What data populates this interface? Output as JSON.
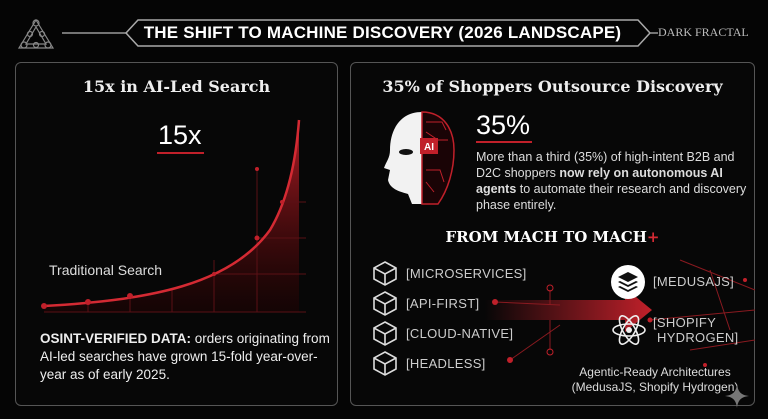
{
  "header": {
    "title": "THE SHIFT TO MACHINE DISCOVERY (2026 LANDSCAPE)",
    "brand": "DARK FRACTAL",
    "logo_icon": "fractal-triangle-icon"
  },
  "left_panel": {
    "title": "15x in AI-Led Search",
    "stat": "15x",
    "curve_label": "Traditional Search",
    "footnote_bold": "OSINT-VERIFIED DATA:",
    "footnote": " orders originating from AI-led searches have grown 15-fold year-over-year as of early 2025."
  },
  "right_panel": {
    "title": "35% of Shoppers Outsource Discovery",
    "stat": "35%",
    "ai_badge": "AI",
    "desc_pre": "More than a third (35%) of high-intent B2B and D2C shoppers ",
    "desc_bold": "now rely on autonomous AI agents",
    "desc_post": " to automate their research and discovery phase entirely.",
    "section_title": "FROM MACH TO MACH",
    "section_plus": "+",
    "mach_items": [
      "[MICROSERVICES]",
      "[API-FIRST]",
      "[CLOUD-NATIVE]",
      "[HEADLESS]"
    ],
    "machplus_items": [
      {
        "label": "[MEDUSAJS]",
        "icon": "layers-icon"
      },
      {
        "label_1": "[SHOPIFY",
        "label_2": "HYDROGEN]",
        "icon": "atom-icon"
      }
    ],
    "caption_1": "Agentic-Ready Architectures",
    "caption_2": "(MedusaJS, Shopify Hydrogen)"
  },
  "colors": {
    "accent": "#c0202a",
    "background": "#050505"
  }
}
